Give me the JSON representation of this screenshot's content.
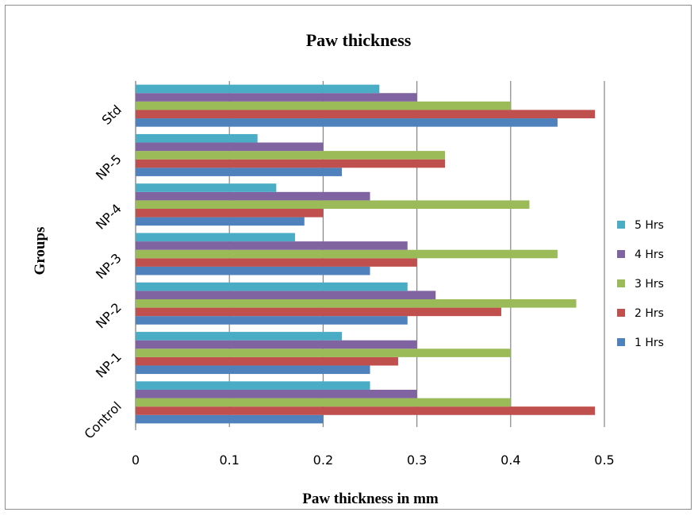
{
  "chart_data": {
    "type": "bar",
    "orientation": "horizontal",
    "title": "Paw thickness",
    "xlabel": "Paw thickness in mm",
    "ylabel": "Groups",
    "xlim": [
      0,
      0.5
    ],
    "xticks": [
      "0",
      "0.1",
      "0.2",
      "0.3",
      "0.4",
      "0.5"
    ],
    "grid": "vertical major gridlines",
    "legend_position": "right",
    "categories": [
      "Control",
      "NP-1",
      "NP-2",
      "NP-3",
      "NP-4",
      "NP-5",
      "Std"
    ],
    "series": [
      {
        "name": "1 Hrs",
        "color": "#4f81bd",
        "values": [
          0.2,
          0.25,
          0.29,
          0.25,
          0.18,
          0.22,
          0.45
        ]
      },
      {
        "name": "2 Hrs",
        "color": "#c0504d",
        "values": [
          0.49,
          0.28,
          0.39,
          0.3,
          0.2,
          0.33,
          0.49
        ]
      },
      {
        "name": "3 Hrs",
        "color": "#9bbb59",
        "values": [
          0.4,
          0.4,
          0.47,
          0.45,
          0.42,
          0.33,
          0.4
        ]
      },
      {
        "name": "4 Hrs",
        "color": "#8064a2",
        "values": [
          0.3,
          0.3,
          0.32,
          0.29,
          0.25,
          0.2,
          0.3
        ]
      },
      {
        "name": "5 Hrs",
        "color": "#4bacc6",
        "values": [
          0.25,
          0.22,
          0.29,
          0.17,
          0.15,
          0.13,
          0.26
        ]
      }
    ]
  }
}
